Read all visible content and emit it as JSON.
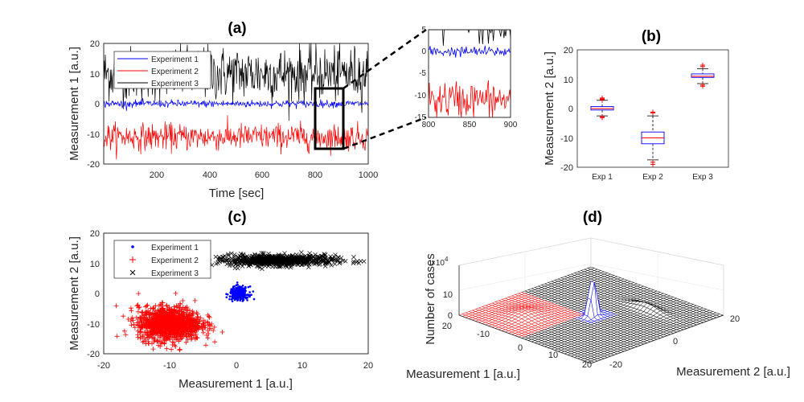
{
  "figure_labels": {
    "a": "(a)",
    "b": "(b)",
    "c": "(c)",
    "d": "(d)"
  },
  "chart_data": [
    {
      "id": "a",
      "type": "line",
      "title": "(a)",
      "xlabel": "Time [sec]",
      "ylabel": "Measurement 1 [a.u.]",
      "xlim": [
        0,
        1000
      ],
      "ylim": [
        -20,
        20
      ],
      "xticks": [
        200,
        400,
        600,
        800,
        1000
      ],
      "yticks": [
        -20,
        -10,
        0,
        10,
        20
      ],
      "legend_position": "top-left",
      "series": [
        {
          "name": "Experiment 1",
          "color": "#0000ff",
          "mean": 0,
          "std": 0.6
        },
        {
          "name": "Experiment 2",
          "color": "#ff0000",
          "mean": -11,
          "std": 2.2
        },
        {
          "name": "Experiment 3",
          "color": "#000000",
          "mean": 10,
          "std": 4.5
        }
      ],
      "zoom_box": {
        "x": [
          800,
          900
        ],
        "y": [
          -15,
          5
        ]
      }
    },
    {
      "id": "a-inset",
      "type": "line",
      "title": "",
      "xlim": [
        800,
        900
      ],
      "ylim": [
        -15,
        5
      ],
      "xticks": [
        800,
        850,
        900
      ],
      "yticks": [
        -15,
        -10,
        -5,
        0,
        5
      ]
    },
    {
      "id": "b",
      "type": "box",
      "title": "(b)",
      "ylabel": "Measurement 2 [a.u.]",
      "ylim": [
        -20,
        20
      ],
      "yticks": [
        -20,
        -10,
        0,
        10,
        20
      ],
      "categories": [
        "Exp 1",
        "Exp 2",
        "Exp 3"
      ],
      "boxes": [
        {
          "q1": -0.5,
          "median": 0,
          "q3": 0.7,
          "whisker_low": -2.5,
          "whisker_high": 2.8,
          "outliers": [
            -3.1,
            -2.8,
            3.0,
            3.3,
            3.6
          ]
        },
        {
          "q1": -12,
          "median": -10,
          "q3": -8,
          "whisker_low": -17.5,
          "whisker_high": -2.5,
          "outliers": [
            -18.3,
            -19,
            -1.5,
            -1.2
          ]
        },
        {
          "q1": 10.6,
          "median": 11,
          "q3": 11.8,
          "whisker_low": 8.5,
          "whisker_high": 13.6,
          "outliers": [
            7.6,
            8.0,
            14.3,
            14.8
          ]
        }
      ]
    },
    {
      "id": "c",
      "type": "scatter",
      "title": "(c)",
      "xlabel": "Measurement 1 [a.u.]",
      "ylabel": "Measurement 2 [a.u.]",
      "xlim": [
        -20,
        20
      ],
      "ylim": [
        -20,
        20
      ],
      "xticks": [
        -20,
        -10,
        0,
        10,
        20
      ],
      "yticks": [
        -20,
        -10,
        0,
        10,
        20
      ],
      "legend_position": "top-left",
      "series": [
        {
          "name": "Experiment 1",
          "marker": "dot",
          "color": "#0000ff",
          "center": [
            0.5,
            0
          ],
          "spread": [
            0.7,
            1.1
          ]
        },
        {
          "name": "Experiment 2",
          "marker": "plus",
          "color": "#ff0000",
          "center": [
            -10,
            -10
          ],
          "spread": [
            2.4,
            2.8
          ]
        },
        {
          "name": "Experiment 3",
          "marker": "x",
          "color": "#000000",
          "center": [
            6,
            11
          ],
          "spread": [
            4.5,
            0.9
          ]
        }
      ]
    },
    {
      "id": "d",
      "type": "surface",
      "title": "(d)",
      "xlabel": "Measurement 1 [a.u.]",
      "ylabel": "Measurement 2 [a.u.]",
      "zlabel": "Number of cases",
      "z_multiplier": "×10^4",
      "xticks": [
        -10,
        0,
        10,
        20
      ],
      "yticks": [
        -20,
        0,
        20
      ],
      "zticks": [
        0,
        10
      ]
    }
  ]
}
